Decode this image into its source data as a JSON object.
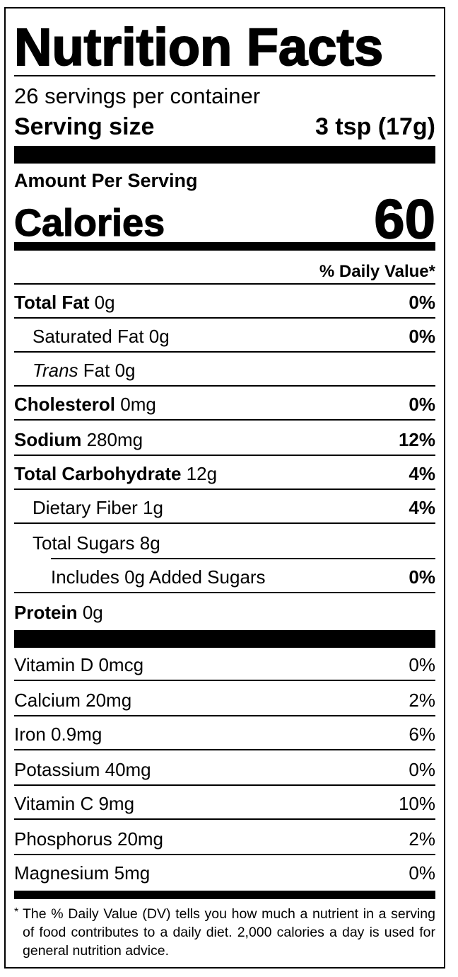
{
  "label": {
    "title": "Nutrition Facts",
    "servings_per_container": "26 servings per container",
    "serving_size_label": "Serving size",
    "serving_size_value": "3 tsp (17g)",
    "amount_per_serving": "Amount Per Serving",
    "calories_label": "Calories",
    "calories_value": "60",
    "daily_value_header": "% Daily Value*",
    "nutrients": [
      {
        "name": "Total Fat",
        "amount": "0g",
        "pct": "0%"
      },
      {
        "name": "Saturated Fat",
        "amount": "0g",
        "pct": "0%"
      },
      {
        "name_italic": "Trans",
        "name": "Fat",
        "amount": "0g",
        "pct": ""
      },
      {
        "name": "Cholesterol",
        "amount": "0mg",
        "pct": "0%"
      },
      {
        "name": "Sodium",
        "amount": "280mg",
        "pct": "12%"
      },
      {
        "name": "Total Carbohydrate",
        "amount": "12g",
        "pct": "4%"
      },
      {
        "name": "Dietary Fiber",
        "amount": "1g",
        "pct": "4%"
      },
      {
        "name": "Total Sugars",
        "amount": "8g",
        "pct": ""
      },
      {
        "name": "Includes 0g Added Sugars",
        "amount": "",
        "pct": "0%"
      },
      {
        "name": "Protein",
        "amount": "0g",
        "pct": ""
      }
    ],
    "vitamins": [
      {
        "name": "Vitamin D 0mcg",
        "pct": "0%"
      },
      {
        "name": "Calcium 20mg",
        "pct": "2%"
      },
      {
        "name": "Iron 0.9mg",
        "pct": "6%"
      },
      {
        "name": "Potassium 40mg",
        "pct": "0%"
      },
      {
        "name": "Vitamin C 9mg",
        "pct": "10%"
      },
      {
        "name": "Phosphorus 20mg",
        "pct": "2%"
      },
      {
        "name": "Magnesium 5mg",
        "pct": "0%"
      }
    ],
    "footnote_marker": "*",
    "footnote": "The % Daily Value (DV) tells you how much a nutrient in a serving of food contributes to a daily diet. 2,000 calories a day is used for general nutrition advice."
  }
}
